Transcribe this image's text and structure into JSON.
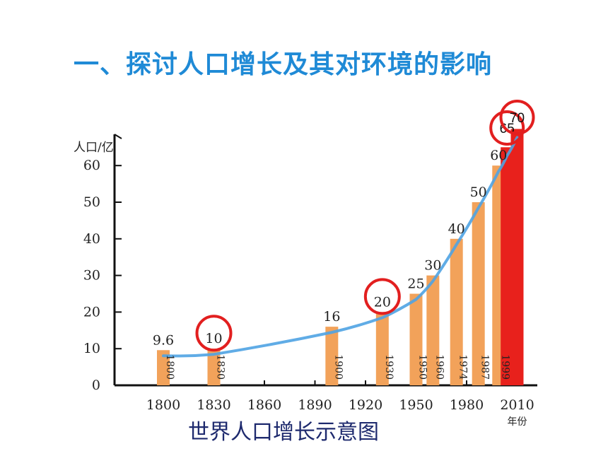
{
  "slide": {
    "title": "一、探讨人口增长及其对环境的影响",
    "caption": "世界人口增长示意图"
  },
  "chart_data": {
    "type": "bar",
    "ylabel": "人口/亿",
    "xlabel_extra": "年份",
    "ylim": [
      0,
      70
    ],
    "y_ticks": [
      0,
      10,
      20,
      30,
      40,
      50,
      60
    ],
    "x_ticks": [
      1800,
      1830,
      1860,
      1890,
      1920,
      1950,
      1980,
      2010
    ],
    "bars": [
      {
        "year": 1800,
        "value": 9.6,
        "value_label": "9.6",
        "year_label": "1800",
        "color": "#f2a25a"
      },
      {
        "year": 1830,
        "value": 10,
        "value_label": "10",
        "year_label": "1830",
        "color": "#f2a25a"
      },
      {
        "year": 1900,
        "value": 16,
        "value_label": "16",
        "year_label": "1900",
        "color": "#f2a25a"
      },
      {
        "year": 1930,
        "value": 20,
        "value_label": "20",
        "year_label": "1930",
        "color": "#f2a25a"
      },
      {
        "year": 1950,
        "value": 25,
        "value_label": "25",
        "year_label": "1950",
        "color": "#f2a25a"
      },
      {
        "year": 1960,
        "value": 30,
        "value_label": "30",
        "year_label": "1960",
        "color": "#f2a25a"
      },
      {
        "year": 1974,
        "value": 40,
        "value_label": "40",
        "year_label": "1974",
        "color": "#f2a25a"
      },
      {
        "year": 1987,
        "value": 50,
        "value_label": "50",
        "year_label": "1987",
        "color": "#f2a25a"
      },
      {
        "year": 1999,
        "value": 60,
        "value_label": "60",
        "year_label": "1999",
        "color": "#f2a25a"
      },
      {
        "year": 2004,
        "value": 65,
        "value_label": "",
        "year_label": "",
        "color": "#e8211c"
      },
      {
        "year": 2010,
        "value": 70,
        "value_label": "",
        "year_label": "",
        "color": "#e8211c"
      }
    ],
    "trend_color": "#4fa3e3",
    "callouts": [
      {
        "target_year": 1830,
        "text": ""
      },
      {
        "target_year": 1930,
        "text": ""
      },
      {
        "target_year": 2004,
        "text": "65"
      },
      {
        "target_year": 2010,
        "text": "70"
      }
    ]
  }
}
